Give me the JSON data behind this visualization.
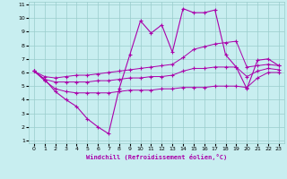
{
  "xlabel": "Windchill (Refroidissement éolien,°C)",
  "background_color": "#c8eef0",
  "line_color": "#aa00aa",
  "grid_color": "#99cccc",
  "x_data": [
    0,
    1,
    2,
    3,
    4,
    5,
    6,
    7,
    8,
    9,
    10,
    11,
    12,
    13,
    14,
    15,
    16,
    17,
    18,
    19,
    20,
    21,
    22,
    23
  ],
  "y_main": [
    6.1,
    5.5,
    4.6,
    4.0,
    3.5,
    2.6,
    2.0,
    1.5,
    4.8,
    7.3,
    9.8,
    8.9,
    9.5,
    7.5,
    10.7,
    10.4,
    10.4,
    10.6,
    7.3,
    6.4,
    4.8,
    6.9,
    7.0,
    6.5
  ],
  "y_upper": [
    6.1,
    5.7,
    5.6,
    5.7,
    5.8,
    5.8,
    5.9,
    6.0,
    6.1,
    6.2,
    6.3,
    6.4,
    6.5,
    6.6,
    7.1,
    7.7,
    7.9,
    8.1,
    8.2,
    8.3,
    6.4,
    6.5,
    6.6,
    6.5
  ],
  "y_mid": [
    6.1,
    5.5,
    5.3,
    5.3,
    5.3,
    5.3,
    5.4,
    5.4,
    5.5,
    5.6,
    5.6,
    5.7,
    5.7,
    5.8,
    6.1,
    6.3,
    6.3,
    6.4,
    6.4,
    6.4,
    5.7,
    6.1,
    6.3,
    6.2
  ],
  "y_lower": [
    6.1,
    5.4,
    4.8,
    4.6,
    4.5,
    4.5,
    4.5,
    4.5,
    4.6,
    4.7,
    4.7,
    4.7,
    4.8,
    4.8,
    4.9,
    4.9,
    4.9,
    5.0,
    5.0,
    5.0,
    4.9,
    5.6,
    6.0,
    6.0
  ],
  "xlim": [
    -0.5,
    23.5
  ],
  "ylim": [
    0.8,
    11.2
  ],
  "yticks": [
    1,
    2,
    3,
    4,
    5,
    6,
    7,
    8,
    9,
    10,
    11
  ],
  "xticks": [
    0,
    1,
    2,
    3,
    4,
    5,
    6,
    7,
    8,
    9,
    10,
    11,
    12,
    13,
    14,
    15,
    16,
    17,
    18,
    19,
    20,
    21,
    22,
    23
  ]
}
